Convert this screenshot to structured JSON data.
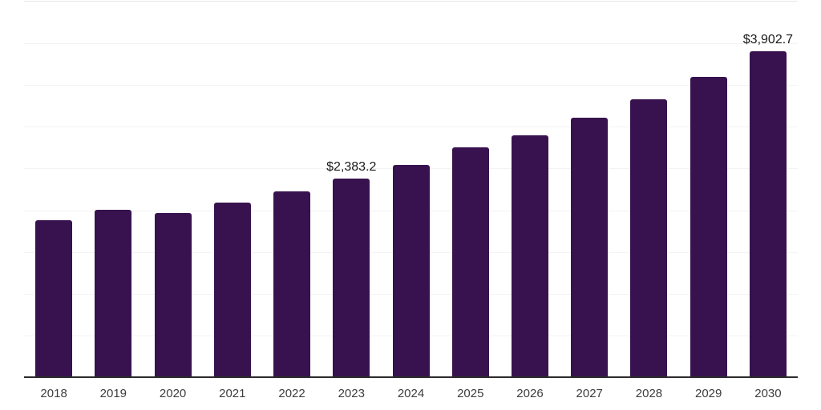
{
  "chart_data": {
    "type": "bar",
    "title": "",
    "xlabel": "",
    "ylabel": "",
    "categories": [
      "2018",
      "2019",
      "2020",
      "2021",
      "2022",
      "2023",
      "2024",
      "2025",
      "2026",
      "2027",
      "2028",
      "2029",
      "2030"
    ],
    "values": [
      1885,
      2005,
      1970,
      2090,
      2225,
      2383.2,
      2540,
      2750,
      2895,
      3105,
      3330,
      3595,
      3902.7
    ],
    "value_labels": [
      {
        "category": "2023",
        "text": "$2,383.2"
      },
      {
        "category": "2030",
        "text": "$3,902.7"
      }
    ],
    "ylim": [
      0,
      4500
    ],
    "grid_interval": 500,
    "grid": "horizontal-light",
    "legend_position": "none",
    "y_tick_labels_visible": false,
    "colors": {
      "bar": "#38124E",
      "gridline": "#f3f3f3",
      "plot_top_border": "#e8e8e8",
      "axis_line": "#2b2b2b",
      "tick_label_text": "#3d3d3d",
      "value_label_text": "#1a1a1a",
      "background": "#ffffff"
    }
  }
}
